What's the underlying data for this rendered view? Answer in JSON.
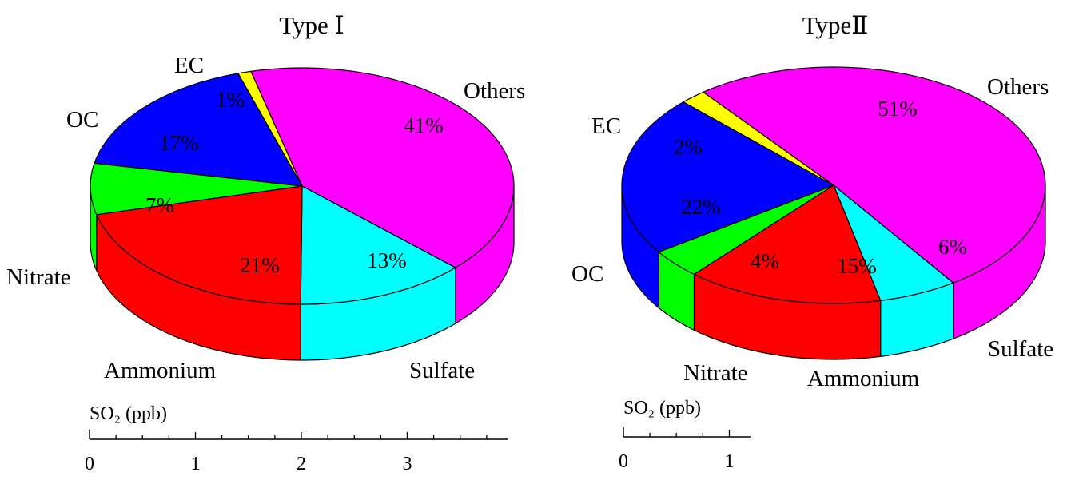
{
  "colors": {
    "Others": "#ff00ff",
    "Sulfate": "#00ffff",
    "Ammonium": "#ff0000",
    "Nitrate": "#00ff00",
    "OC": "#0000ff",
    "EC": "#ffff00",
    "outline": "#000000"
  },
  "chart_data": [
    {
      "type": "pie",
      "title": "Type Ⅰ",
      "style": "3d-cylinder",
      "slices": [
        {
          "label": "Others",
          "value": 41,
          "value_label": "41%"
        },
        {
          "label": "Sulfate",
          "value": 13,
          "value_label": "13%"
        },
        {
          "label": "Ammonium",
          "value": 21,
          "value_label": "21%"
        },
        {
          "label": "Nitrate",
          "value": 7,
          "value_label": "7%"
        },
        {
          "label": "OC",
          "value": 17,
          "value_label": "17%"
        },
        {
          "label": "EC",
          "value": 1,
          "value_label": "1%"
        }
      ],
      "scale_bar": {
        "title": "SO₂ (ppb)",
        "tick_labels": [
          "0",
          "1",
          "2",
          "3"
        ]
      }
    },
    {
      "type": "pie",
      "title": "TypeⅡ",
      "style": "3d-cylinder",
      "slices": [
        {
          "label": "Others",
          "value": 51,
          "value_label": "51%"
        },
        {
          "label": "Sulfate",
          "value": 6,
          "value_label": "6%"
        },
        {
          "label": "Ammonium",
          "value": 15,
          "value_label": "15%"
        },
        {
          "label": "Nitrate",
          "value": 4,
          "value_label": "4%"
        },
        {
          "label": "OC",
          "value": 22,
          "value_label": "22%"
        },
        {
          "label": "EC",
          "value": 2,
          "value_label": "2%"
        }
      ],
      "scale_bar": {
        "title": "SO₂ (ppb)",
        "tick_labels": [
          "0",
          "1"
        ]
      }
    }
  ]
}
